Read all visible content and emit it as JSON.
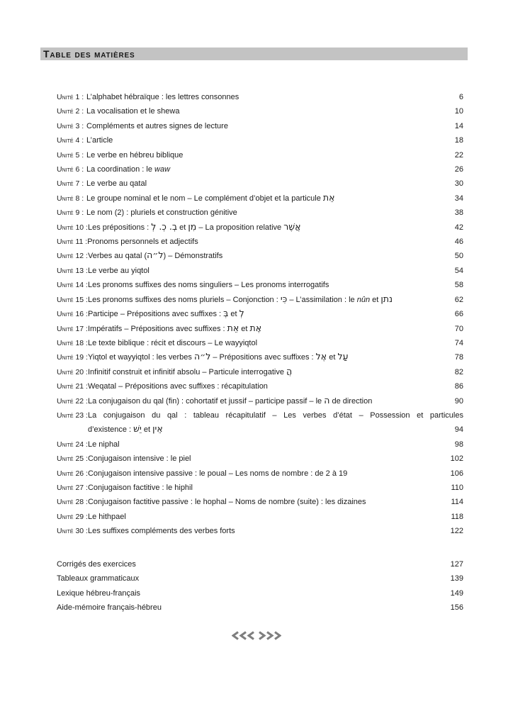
{
  "header": {
    "title": "Table des matières",
    "bar_color": "#c3c3c3"
  },
  "toc": {
    "entries": [
      {
        "label": "Unité 1 :",
        "title": "L’alphabet hébraïque : les lettres consonnes",
        "page": "6"
      },
      {
        "label": "Unité 2 :",
        "title": "La vocalisation et le shewa",
        "page": "10"
      },
      {
        "label": "Unité 3 :",
        "title": "Compléments et autres signes de lecture",
        "page": "14"
      },
      {
        "label": "Unité 4 :",
        "title": "L’article",
        "page": "18"
      },
      {
        "label": "Unité 5 :",
        "title": "Le verbe en hébreu biblique",
        "page": "22"
      },
      {
        "label": "Unité 6 :",
        "title_segments": [
          {
            "t": "La coordination : le "
          },
          {
            "t": "waw",
            "i": true
          }
        ],
        "page": "26"
      },
      {
        "label": "Unité 7 :",
        "title": "Le verbe au qatal",
        "page": "30"
      },
      {
        "label": "Unité 8 :",
        "title_segments": [
          {
            "t": "Le groupe nominal et le nom – Le complément d’objet et la particule "
          },
          {
            "t": "אֵת",
            "h": true
          }
        ],
        "page": "34"
      },
      {
        "label": "Unité 9 :",
        "title": "Le nom (2) : pluriels et construction génitive",
        "page": "38"
      },
      {
        "label": "Unité 10 :",
        "title_segments": [
          {
            "t": "Les prépositions : "
          },
          {
            "t": "בְ. כְ. לְ",
            "h": true
          },
          {
            "t": " et "
          },
          {
            "t": "מִן",
            "h": true
          },
          {
            "t": " – La proposition relative "
          },
          {
            "t": "אֲשֶׁר",
            "h": true
          }
        ],
        "page": "42"
      },
      {
        "label": "Unité 11 :",
        "title": "Pronoms personnels et adjectifs",
        "page": "46"
      },
      {
        "label": "Unité 12 :",
        "title_segments": [
          {
            "t": "Verbes au qatal ("
          },
          {
            "t": "ל״ה",
            "h": true
          },
          {
            "t": ") – Démonstratifs"
          }
        ],
        "page": "50"
      },
      {
        "label": "Unité 13 :",
        "title": "Le verbe au yiqtol",
        "page": "54"
      },
      {
        "label": "Unité 14 :",
        "title": "Les pronoms suffixes des noms singuliers – Les pronoms interrogatifs",
        "page": "58"
      },
      {
        "label": "Unité 15 :",
        "title_segments": [
          {
            "t": "Les pronoms suffixes des noms pluriels – Conjonction : "
          },
          {
            "t": "כִּי",
            "h": true
          },
          {
            "t": " – L’assimilation : le "
          },
          {
            "t": "nûn",
            "i": true
          },
          {
            "t": " et "
          },
          {
            "t": "נתן",
            "h": true
          }
        ],
        "page": "62"
      },
      {
        "label": "Unité 16 :",
        "title_segments": [
          {
            "t": "Participe – Prépositions avec suffixes : "
          },
          {
            "t": "בְּ",
            "h": true
          },
          {
            "t": " et "
          },
          {
            "t": "לְ",
            "h": true
          }
        ],
        "page": "66"
      },
      {
        "label": "Unité 17 :",
        "title_segments": [
          {
            "t": "Impératifs – Prépositions avec suffixes : "
          },
          {
            "t": "אֵת",
            "h": true
          },
          {
            "t": " et "
          },
          {
            "t": "אֶת",
            "h": true
          }
        ],
        "page": "70"
      },
      {
        "label": "Unité 18 :",
        "title": "Le texte biblique : récit et discours – Le wayyiqtol",
        "page": "74"
      },
      {
        "label": "Unité 19 :",
        "title_segments": [
          {
            "t": "Yiqtol et wayyiqtol : les verbes "
          },
          {
            "t": "ל״ה",
            "h": true
          },
          {
            "t": " – Prépositions avec suffixes : "
          },
          {
            "t": "אֶל",
            "h": true
          },
          {
            "t": " et "
          },
          {
            "t": "עַל",
            "h": true
          }
        ],
        "page": "78"
      },
      {
        "label": "Unité 20 :",
        "title_segments": [
          {
            "t": "Infinitif construit et infinitif absolu – Particule interrogative "
          },
          {
            "t": "הֲ",
            "h": true
          }
        ],
        "page": "82"
      },
      {
        "label": "Unité 21 :",
        "title": "Weqatal – Prépositions avec suffixes : récapitulation",
        "page": "86"
      },
      {
        "label": "Unité 22 :",
        "title_segments": [
          {
            "t": "La conjugaison du qal (fin) : cohortatif et jussif – participe passif – le "
          },
          {
            "t": "ה",
            "h": true
          },
          {
            "t": " de direction"
          }
        ],
        "page": "90"
      },
      {
        "label": "Unité 23 :",
        "line1": "La conjugaison du qal : tableau récapitulatif – Les verbes d’état – Possession et particules",
        "line2_segments": [
          {
            "t": "d’existence : "
          },
          {
            "t": "יֵשׁ",
            "h": true
          },
          {
            "t": " et "
          },
          {
            "t": "אֵין",
            "h": true
          }
        ],
        "page": "94"
      },
      {
        "label": "Unité 24 :",
        "title": "Le niphal",
        "page": "98"
      },
      {
        "label": "Unité 25 :",
        "title": "Conjugaison intensive : le piel",
        "page": "102"
      },
      {
        "label": "Unité 26 :",
        "title": "Conjugaison intensive passive : le poual – Les noms de nombre : de 2 à 19",
        "page": "106"
      },
      {
        "label": "Unité 27 :",
        "title": "Conjugaison factitive : le hiphil",
        "page": "110"
      },
      {
        "label": "Unité 28 :",
        "title": "Conjugaison factitive passive : le hophal – Noms de nombre (suite) : les dizaines",
        "page": "114"
      },
      {
        "label": "Unité 29 :",
        "title": "Le hithpael",
        "page": "118"
      },
      {
        "label": "Unité 30 :",
        "title": "Les suffixes compléments des verbes forts",
        "page": "122"
      }
    ]
  },
  "back_matter": [
    {
      "title": "Corrigés des exercices",
      "page": "127"
    },
    {
      "title": "Tableaux grammaticaux",
      "page": "139"
    },
    {
      "title": "Lexique hébreu-français",
      "page": "149"
    },
    {
      "title": "Aide-mémoire français-hébreu",
      "page": "156"
    }
  ],
  "footer": {
    "ornament_icon": "triple-left-right-chevrons",
    "ornament_color": "#7e7e7e"
  }
}
